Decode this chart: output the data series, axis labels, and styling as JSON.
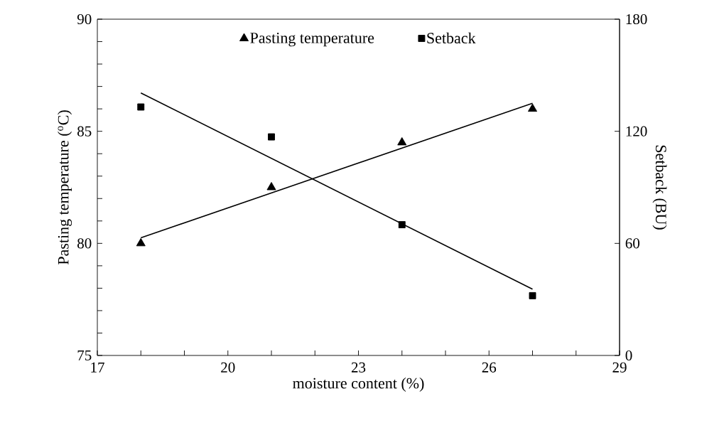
{
  "chart_data": {
    "type": "scatter",
    "xlabel": "moisture content (%)",
    "ylabel": "Pasting temperature ($^{o}$C)",
    "y2label": "Setback (BU)",
    "xlim": [
      17,
      29
    ],
    "xticks": [
      17,
      {
        "value": 18,
        "label": null
      },
      {
        "value": 19,
        "label": null
      },
      20,
      {
        "value": 21,
        "label": null
      },
      {
        "value": 22,
        "label": null
      },
      23,
      {
        "value": 24,
        "label": null
      },
      {
        "value": 25,
        "label": null
      },
      26,
      {
        "value": 27,
        "label": null
      },
      {
        "value": 28,
        "label": null
      },
      29
    ],
    "ylim": [
      75,
      90
    ],
    "yticks": [
      75,
      {
        "value": 76,
        "label": null
      },
      {
        "value": 77,
        "label": null
      },
      {
        "value": 78,
        "label": null
      },
      {
        "value": 79,
        "label": null
      },
      80,
      {
        "value": 81,
        "label": null
      },
      {
        "value": 82,
        "label": null
      },
      {
        "value": 83,
        "label": null
      },
      {
        "value": 84,
        "label": null
      },
      85,
      {
        "value": 86,
        "label": null
      },
      {
        "value": 87,
        "label": null
      },
      {
        "value": 88,
        "label": null
      },
      {
        "value": 89,
        "label": null
      },
      90
    ],
    "y2lim": [
      0,
      180
    ],
    "y2ticks": [
      0,
      60,
      120,
      180
    ],
    "legend": "top",
    "grid": false,
    "series": [
      {
        "name": "Pasting temperature",
        "marker": "triangle",
        "color": "#000000",
        "x": [
          18,
          21,
          24,
          27
        ],
        "values": [
          80,
          82.5,
          84.5,
          86
        ]
      },
      {
        "name": "Setback",
        "marker": "square",
        "color": "#000000",
        "axis": "y2",
        "x": [
          18,
          21,
          24,
          27
        ],
        "values": [
          133,
          117,
          70,
          32
        ]
      },
      {
        "type": "line",
        "color": "#000000",
        "x": [
          18,
          27
        ],
        "values": [
          80.25,
          86.25
        ]
      },
      {
        "type": "line",
        "color": "#000000",
        "axis": "y2",
        "x": [
          18,
          27
        ],
        "values": [
          140.5,
          35.5
        ]
      }
    ]
  }
}
